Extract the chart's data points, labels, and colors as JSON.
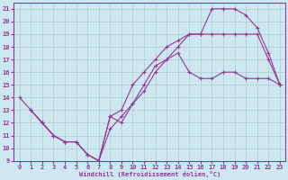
{
  "xlabel": "Windchill (Refroidissement éolien,°C)",
  "bg_color": "#cde8f0",
  "line_color": "#993399",
  "grid_color": "#aacccc",
  "xlim": [
    -0.5,
    23.5
  ],
  "ylim": [
    9,
    21.5
  ],
  "xticks": [
    0,
    1,
    2,
    3,
    4,
    5,
    6,
    7,
    8,
    9,
    10,
    11,
    12,
    13,
    14,
    15,
    16,
    17,
    18,
    19,
    20,
    21,
    22,
    23
  ],
  "yticks": [
    9,
    10,
    11,
    12,
    13,
    14,
    15,
    16,
    17,
    18,
    19,
    20,
    21
  ],
  "line1_x": [
    0,
    1,
    2,
    3,
    4,
    5,
    6,
    7,
    8,
    9,
    10,
    11,
    12,
    13,
    14,
    15,
    16,
    17,
    18,
    19,
    20,
    21,
    22,
    23
  ],
  "line1_y": [
    14,
    13,
    12,
    11,
    10.5,
    10.5,
    9.5,
    9.0,
    11.5,
    12.5,
    13.5,
    15.0,
    16.5,
    17.0,
    17.5,
    16.0,
    15.5,
    15.5,
    16.0,
    16.0,
    15.5,
    15.5,
    15.5,
    15.0
  ],
  "line2_x": [
    1,
    2,
    3,
    4,
    5,
    6,
    7,
    8,
    9,
    10,
    11,
    12,
    13,
    14,
    15,
    16,
    17,
    18,
    19,
    20,
    21,
    22,
    23
  ],
  "line2_y": [
    13,
    12,
    11,
    10.5,
    10.5,
    9.5,
    9.0,
    12.5,
    13.0,
    15.0,
    16.0,
    17.0,
    18.0,
    18.5,
    19.0,
    19.0,
    21.0,
    21.0,
    21.0,
    20.5,
    19.5,
    17.5,
    15.0
  ],
  "line3_x": [
    1,
    2,
    3,
    4,
    5,
    6,
    7,
    8,
    9,
    10,
    11,
    12,
    13,
    14,
    15,
    16,
    17,
    18,
    19,
    20,
    21,
    22,
    23
  ],
  "line3_y": [
    13,
    12,
    11,
    10.5,
    10.5,
    9.5,
    9.0,
    12.5,
    12.0,
    13.5,
    14.5,
    16.0,
    17.0,
    18.0,
    19.0,
    19.0,
    19.0,
    19.0,
    19.0,
    19.0,
    19.0,
    17.0,
    15.0
  ]
}
